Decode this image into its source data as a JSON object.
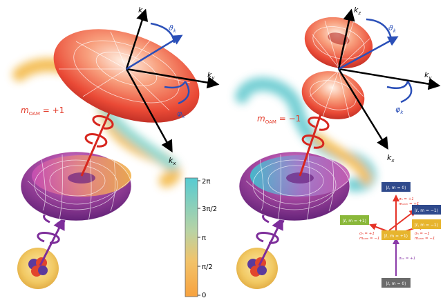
{
  "axes": {
    "kz": "k",
    "kz_sub": "z",
    "ky": "k",
    "ky_sub": "y",
    "kx": "k",
    "kx_sub": "x",
    "theta": "ϑ",
    "theta_sub": "k",
    "phi": "φ",
    "phi_sub": "k"
  },
  "oam_labels": {
    "left": {
      "m": "m",
      "sub": "OAM",
      "rest": " = +1"
    },
    "right": {
      "m": "m",
      "sub": "OAM",
      "rest": " = −1"
    }
  },
  "colorbar": {
    "ticks": [
      "2π",
      "3π/2",
      "π",
      "π/2",
      "0"
    ],
    "colors": [
      "#6fd3d6",
      "#9ed6bf",
      "#c8d69a",
      "#f2c36a",
      "#f7a23f"
    ]
  },
  "levels": {
    "top": "|ℓ, m = 0⟩",
    "upper_right": "|ℓ, m = −1⟩",
    "mid_left": "|ℓ, m = +1⟩",
    "mid_right": "|ℓ, m = −1⟩",
    "center": "|ℓ, m = +1⟩",
    "bottom": "|ℓ, m = 0⟩"
  },
  "transitions": {
    "up_top": "σₙ = +1",
    "up_top_oam": "mₒₐₘ = +1",
    "left_sigma": "σₙ = +1",
    "left_oam": "mₒₐₘ = −1",
    "right_sigma": "σₙ = −1",
    "right_oam": "mₒₐₘ = −1",
    "bottom_sigma": "σₐₓ = +1"
  },
  "colors": {
    "red_lobe": "#ee4e3a",
    "purple_torus": "#7a2e8e",
    "arrow_blue": "#2a4fb8",
    "arrow_red": "#d7261e",
    "arrow_purple": "#7d2d9a",
    "level_navy": "#2f4a8c",
    "level_green": "#8ab83a",
    "level_gold": "#e7b52e",
    "level_gray": "#6b6b6b"
  }
}
